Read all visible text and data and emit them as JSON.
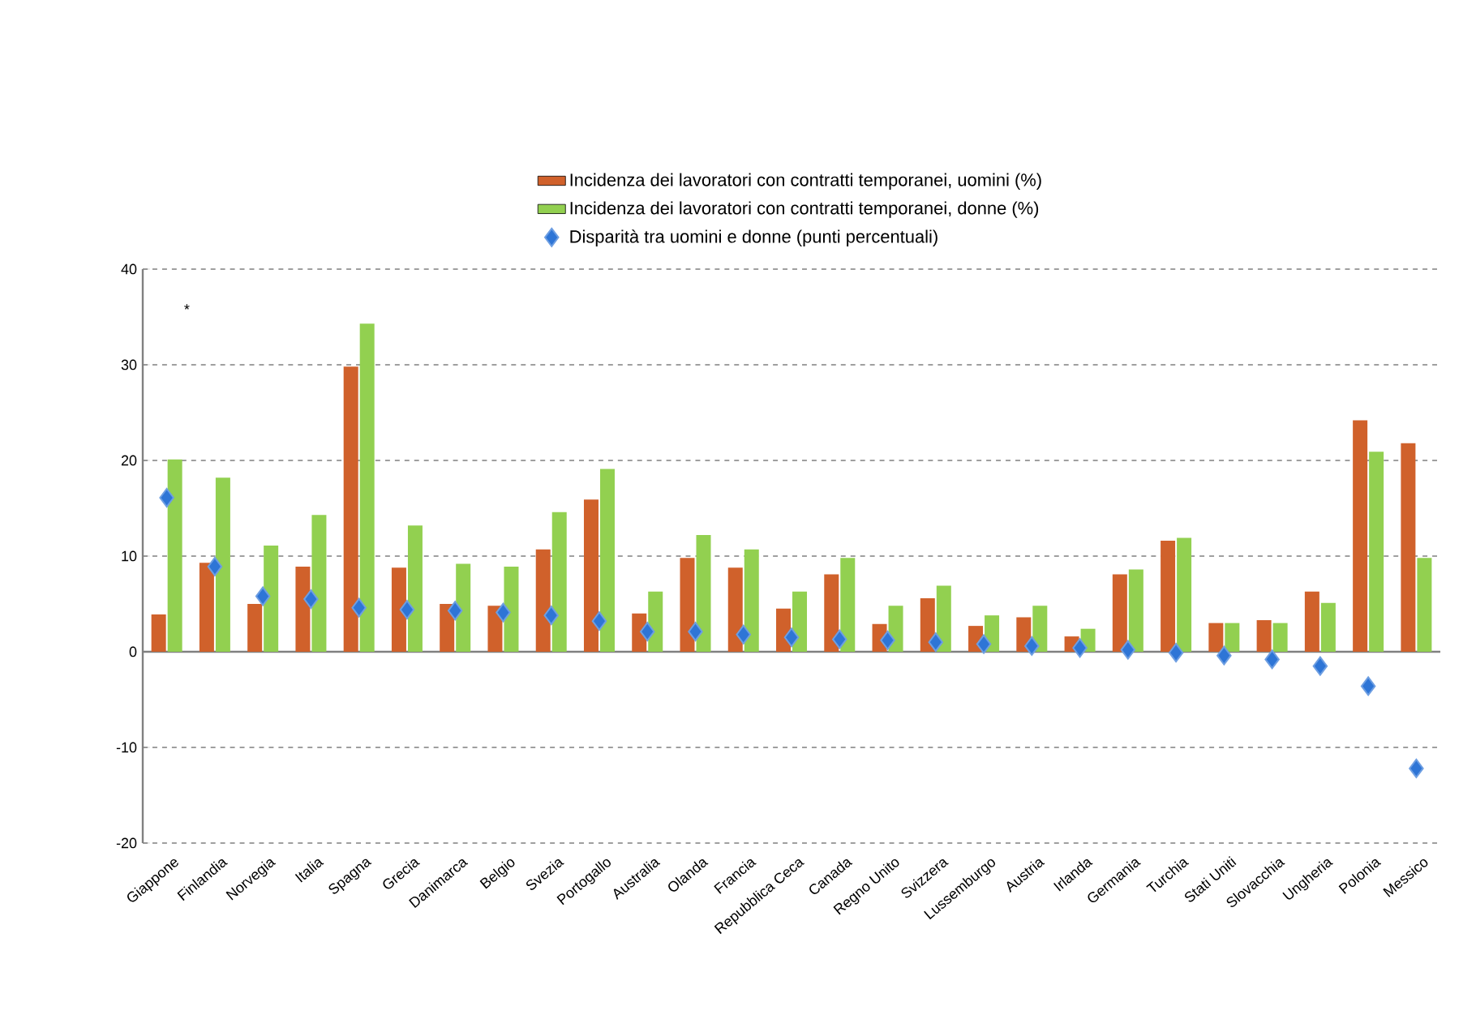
{
  "chart_data": {
    "type": "bar",
    "categories": [
      "Giappone",
      "Finlandia",
      "Norvegia",
      "Italia",
      "Spagna",
      "Grecia",
      "Danimarca",
      "Belgio",
      "Svezia",
      "Portogallo",
      "Australia",
      "Olanda",
      "Francia",
      "Repubblica Ceca",
      "Canada",
      "Regno Unito",
      "Svizzera",
      "Lussemburgo",
      "Austria",
      "Irlanda",
      "Germania",
      "Turchia",
      "Stati Uniti",
      "Slovacchia",
      "Ungheria",
      "Polonia",
      "Messico"
    ],
    "series": [
      {
        "name": "Incidenza dei lavoratori con contratti temporanei, uomini (%)",
        "color": "#d0612b",
        "values": [
          3.9,
          9.3,
          5.0,
          8.9,
          29.8,
          8.8,
          5.0,
          4.8,
          10.7,
          15.9,
          4.0,
          9.8,
          8.8,
          4.5,
          8.1,
          2.9,
          5.6,
          2.7,
          3.6,
          1.6,
          8.1,
          11.6,
          3.0,
          3.3,
          6.3,
          24.2,
          21.8
        ]
      },
      {
        "name": "Incidenza dei lavoratori con contratti temporanei, donne (%)",
        "color": "#92d050",
        "values": [
          20.1,
          18.2,
          11.1,
          14.3,
          34.3,
          13.2,
          9.2,
          8.9,
          14.6,
          19.1,
          6.3,
          12.2,
          10.7,
          6.3,
          9.8,
          4.8,
          6.9,
          3.8,
          4.8,
          2.4,
          8.6,
          11.9,
          3.0,
          3.0,
          5.1,
          20.9,
          9.8
        ]
      },
      {
        "name": "Disparità tra uomini e donne (punti percentuali)",
        "type": "scatter",
        "marker": "diamond",
        "color": "#2e75d6",
        "values": [
          16.1,
          8.9,
          5.8,
          5.5,
          4.6,
          4.4,
          4.3,
          4.1,
          3.8,
          3.2,
          2.1,
          2.1,
          1.8,
          1.5,
          1.3,
          1.2,
          1.0,
          0.8,
          0.6,
          0.4,
          0.2,
          -0.1,
          -0.4,
          -0.8,
          -1.5,
          -3.6,
          -12.2
        ]
      }
    ],
    "ylim": [
      -20,
      40
    ],
    "yticks": [
      -20,
      -10,
      0,
      10,
      20,
      30,
      40
    ],
    "grid": "y",
    "legend": "top",
    "annotations": [
      "*"
    ]
  }
}
